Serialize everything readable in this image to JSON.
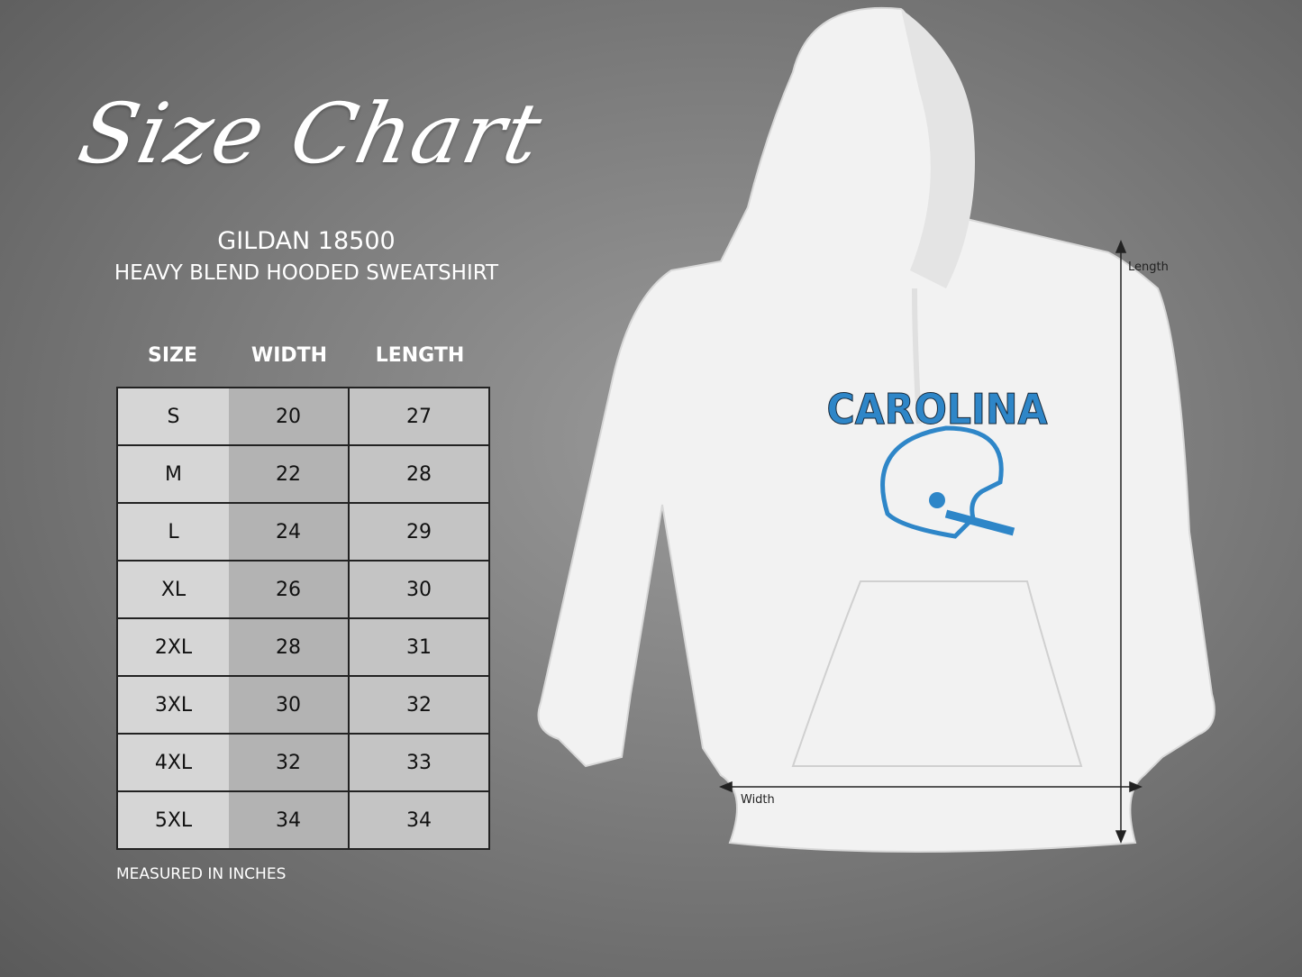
{
  "title": "Size Chart",
  "brand": "GILDAN 18500",
  "product": "HEAVY BLEND HOODED SWEATSHIRT",
  "table": {
    "headers": [
      "SIZE",
      "WIDTH",
      "LENGTH"
    ],
    "rows": [
      [
        "S",
        "20",
        "27"
      ],
      [
        "M",
        "22",
        "28"
      ],
      [
        "L",
        "24",
        "29"
      ],
      [
        "XL",
        "26",
        "30"
      ],
      [
        "2XL",
        "28",
        "31"
      ],
      [
        "3XL",
        "30",
        "32"
      ],
      [
        "4XL",
        "32",
        "33"
      ],
      [
        "5XL",
        "34",
        "34"
      ]
    ]
  },
  "note": "MEASURED IN INCHES",
  "garment": {
    "print_text": "CAROLINA",
    "print_color": "#2e86c8",
    "length_label": "Length",
    "width_label": "Width"
  }
}
